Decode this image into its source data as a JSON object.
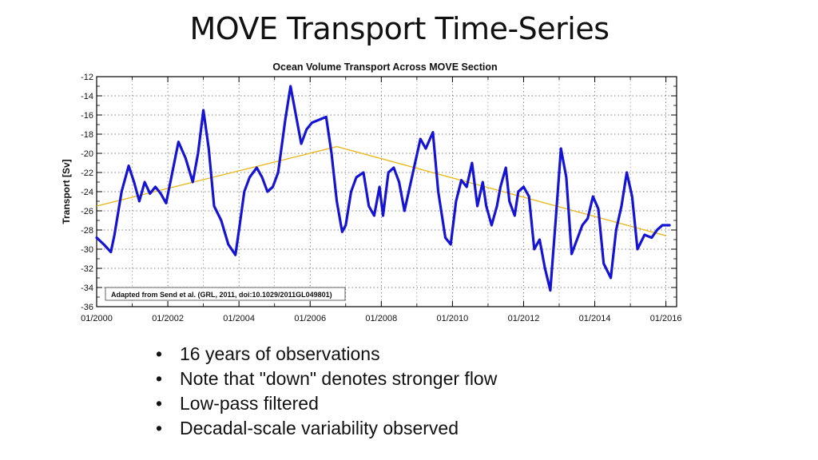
{
  "slide": {
    "title": "MOVE Transport Time-Series",
    "bullets": [
      "16 years of observations",
      "Note that \"down\" denotes stronger flow",
      "Low-pass filtered",
      "Decadal-scale variability observed"
    ]
  },
  "chart_data": {
    "type": "line",
    "title": "Ocean Volume Transport Across MOVE Section",
    "ylabel": "Transport [Sv]",
    "xlabel": "",
    "annotation": "Adapted from Send et al. (GRL, 2011, doi:10.1029/2011GL049801)",
    "x_unit": "year",
    "xlim": [
      2000,
      2016.3
    ],
    "ylim": [
      -36,
      -12
    ],
    "y_ticks": [
      -12,
      -14,
      -16,
      -18,
      -20,
      -22,
      -24,
      -26,
      -28,
      -30,
      -32,
      -34,
      -36
    ],
    "x_tick_values": [
      2000,
      2002,
      2004,
      2006,
      2008,
      2010,
      2012,
      2014,
      2016
    ],
    "x_tick_labels": [
      "01/2000",
      "01/2002",
      "01/2004",
      "01/2006",
      "01/2008",
      "01/2010",
      "01/2012",
      "01/2014",
      "01/2016"
    ],
    "grid": true,
    "colors": {
      "series": "#1414d2",
      "trend": "#e8b923"
    },
    "series": [
      {
        "x": [
          2000.0,
          2000.2,
          2000.4,
          2000.5,
          2000.7,
          2000.9,
          2001.05,
          2001.2,
          2001.35,
          2001.5,
          2001.65,
          2001.8,
          2001.95,
          2002.1,
          2002.3,
          2002.5,
          2002.7,
          2002.85,
          2003.0,
          2003.15,
          2003.3,
          2003.5,
          2003.7,
          2003.9,
          2004.0,
          2004.15,
          2004.3,
          2004.5,
          2004.65,
          2004.8,
          2004.95,
          2005.1,
          2005.3,
          2005.45,
          2005.6,
          2005.75,
          2005.9,
          2006.05,
          2006.25,
          2006.45,
          2006.6,
          2006.75,
          2006.9,
          2007.0,
          2007.15,
          2007.3,
          2007.5,
          2007.65,
          2007.8,
          2007.95,
          2008.05,
          2008.2,
          2008.35,
          2008.5,
          2008.65,
          2008.8,
          2008.95,
          2009.1,
          2009.25,
          2009.45,
          2009.6,
          2009.8,
          2009.95,
          2010.1,
          2010.25,
          2010.4,
          2010.55,
          2010.7,
          2010.85,
          2010.95,
          2011.1,
          2011.25,
          2011.35,
          2011.5,
          2011.6,
          2011.75,
          2011.85,
          2012.0,
          2012.15,
          2012.3,
          2012.45,
          2012.6,
          2012.75,
          2012.9,
          2013.05,
          2013.2,
          2013.35,
          2013.5,
          2013.65,
          2013.8,
          2013.95,
          2014.1,
          2014.25,
          2014.45,
          2014.6,
          2014.75,
          2014.9,
          2015.05,
          2015.2,
          2015.4,
          2015.6,
          2015.75,
          2015.9,
          2016.1
        ],
        "values": [
          -28.8,
          -29.5,
          -30.3,
          -28.5,
          -24.0,
          -21.3,
          -23.0,
          -25.0,
          -23.0,
          -24.2,
          -23.5,
          -24.2,
          -25.2,
          -22.5,
          -18.8,
          -20.5,
          -23.0,
          -20.0,
          -15.5,
          -19.5,
          -25.5,
          -27.0,
          -29.5,
          -30.6,
          -28.0,
          -24.0,
          -22.5,
          -21.5,
          -22.5,
          -24.0,
          -23.5,
          -22.0,
          -16.5,
          -13.0,
          -16.0,
          -19.0,
          -17.5,
          -16.8,
          -16.5,
          -16.2,
          -20.0,
          -25.0,
          -28.2,
          -27.5,
          -24.0,
          -22.5,
          -22.0,
          -25.5,
          -26.5,
          -23.5,
          -26.5,
          -22.0,
          -21.5,
          -23.0,
          -26.0,
          -23.5,
          -21.0,
          -18.5,
          -19.5,
          -17.8,
          -24.0,
          -28.8,
          -29.5,
          -25.0,
          -22.8,
          -23.5,
          -21.0,
          -25.5,
          -23.0,
          -25.5,
          -27.5,
          -25.5,
          -23.5,
          -21.5,
          -25.0,
          -26.5,
          -24.0,
          -23.5,
          -24.5,
          -30.0,
          -29.0,
          -32.0,
          -34.3,
          -27.0,
          -19.5,
          -22.5,
          -30.5,
          -29.0,
          -27.5,
          -26.8,
          -24.5,
          -25.8,
          -31.5,
          -33.0,
          -28.0,
          -25.5,
          -22.0,
          -24.5,
          -30.0,
          -28.5,
          -28.8,
          -28.0,
          -27.5,
          -27.5
        ]
      }
    ],
    "trend_lines": [
      {
        "x": [
          2000.0,
          2006.75
        ],
        "values": [
          -25.5,
          -19.3
        ]
      },
      {
        "x": [
          2006.75,
          2016.0
        ],
        "values": [
          -19.3,
          -28.6
        ]
      }
    ]
  }
}
